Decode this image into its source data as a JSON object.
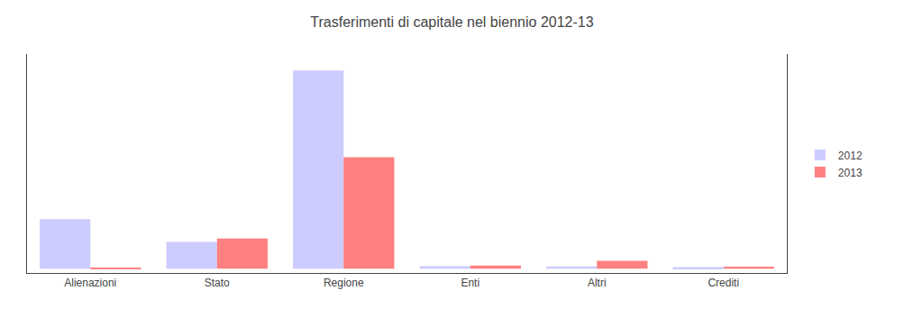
{
  "chart_data": {
    "type": "bar",
    "title": "Trasferimenti di capitale nel biennio 2012-13",
    "categories": [
      "Alienazioni",
      "Stato",
      "Regione",
      "Enti",
      "Altri",
      "Crediti"
    ],
    "series": [
      {
        "name": "2012",
        "color": "#ccccff",
        "values": [
          1200000,
          650000,
          4800000,
          60000,
          55000,
          40000
        ]
      },
      {
        "name": "2013",
        "color": "#ff8080",
        "values": [
          25000,
          730000,
          2700000,
          75000,
          190000,
          50000
        ]
      }
    ],
    "ylim": [
      -104000,
      5200000
    ],
    "yticks": [],
    "grid": false,
    "legend": "right",
    "tick_labels": "x"
  }
}
